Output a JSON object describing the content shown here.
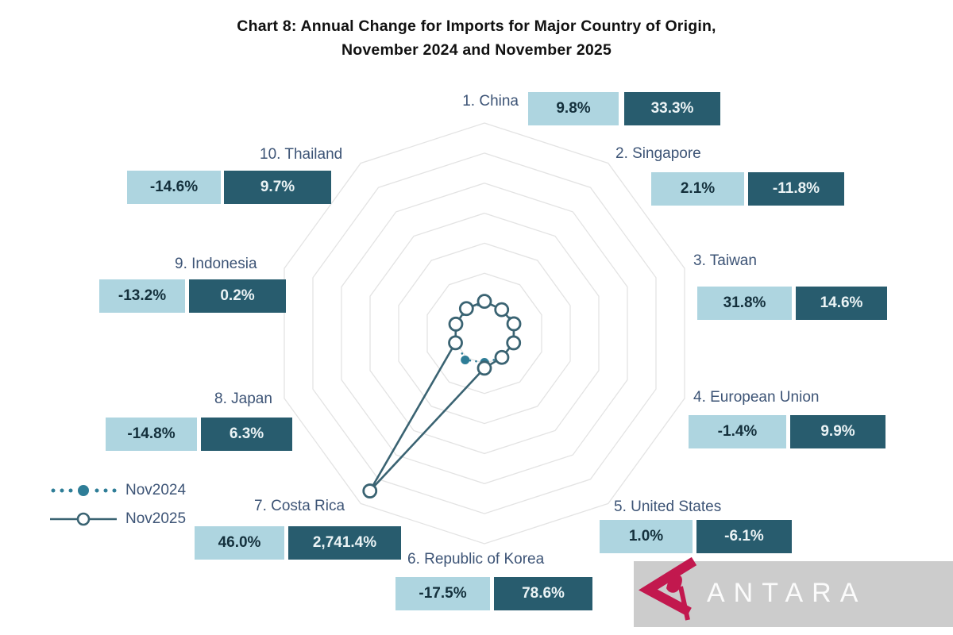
{
  "title": {
    "line1": "Chart 8: Annual Change for Imports for Major Country of Origin,",
    "line2": "November 2024 and November 2025"
  },
  "legend": [
    {
      "name": "Nov2024",
      "marker": "dotted-line-filled-dot"
    },
    {
      "name": "Nov2025",
      "marker": "solid-line-open-circle"
    }
  ],
  "countries": [
    {
      "label": "1. China",
      "nov2024": "9.8%",
      "nov2025": "33.3%"
    },
    {
      "label": "2. Singapore",
      "nov2024": "2.1%",
      "nov2025": "-11.8%"
    },
    {
      "label": "3. Taiwan",
      "nov2024": "31.8%",
      "nov2025": "14.6%"
    },
    {
      "label": "4. European Union",
      "nov2024": "-1.4%",
      "nov2025": "9.9%"
    },
    {
      "label": "5. United States",
      "nov2024": "1.0%",
      "nov2025": "-6.1%"
    },
    {
      "label": "6. Republic of Korea",
      "nov2024": "-17.5%",
      "nov2025": "78.6%"
    },
    {
      "label": "7. Costa Rica",
      "nov2024": "46.0%",
      "nov2025": "2,741.4%"
    },
    {
      "label": "8. Japan",
      "nov2024": "-14.8%",
      "nov2025": "6.3%"
    },
    {
      "label": "9. Indonesia",
      "nov2024": "-13.2%",
      "nov2025": "0.2%"
    },
    {
      "label": "10. Thailand",
      "nov2024": "-14.6%",
      "nov2025": "9.7%"
    }
  ],
  "chart_data": {
    "type": "radar",
    "title": "Chart 8: Annual Change for Imports for Major Country of Origin, November 2024 and November 2025",
    "categories": [
      "1. China",
      "2. Singapore",
      "3. Taiwan",
      "4. European Union",
      "5. United States",
      "6. Republic of Korea",
      "7. Costa Rica",
      "8. Japan",
      "9. Indonesia",
      "10. Thailand"
    ],
    "series": [
      {
        "name": "Nov2024",
        "values": [
          9.8,
          2.1,
          31.8,
          -1.4,
          1.0,
          -17.5,
          46.0,
          -14.8,
          -13.2,
          -14.6
        ]
      },
      {
        "name": "Nov2025",
        "values": [
          33.3,
          -11.8,
          14.6,
          9.9,
          -6.1,
          78.6,
          2741.4,
          6.3,
          0.2,
          9.7
        ]
      }
    ],
    "unit": "percent",
    "axis": {
      "min": -500,
      "max": 3000,
      "ring_step": 500,
      "rings": 7
    },
    "grid": true,
    "spokes": false,
    "legend_position": "bottom-left"
  },
  "watermark": {
    "text": "ANTARA"
  },
  "colors": {
    "light_box": "#aed5e0",
    "dark_box": "#285c6e",
    "light_box_text": "#14303c",
    "dark_box_text": "#ebf3f5",
    "label_text": "#3d5476",
    "title_text": "#111111",
    "grid": "#e3e3e3",
    "series_nov2024": "#2e7d97",
    "series_nov2025": "#3a6372",
    "watermark_bg": "#cacaca",
    "watermark_logo": "#c2184e",
    "watermark_text": "#fbfbfb"
  }
}
